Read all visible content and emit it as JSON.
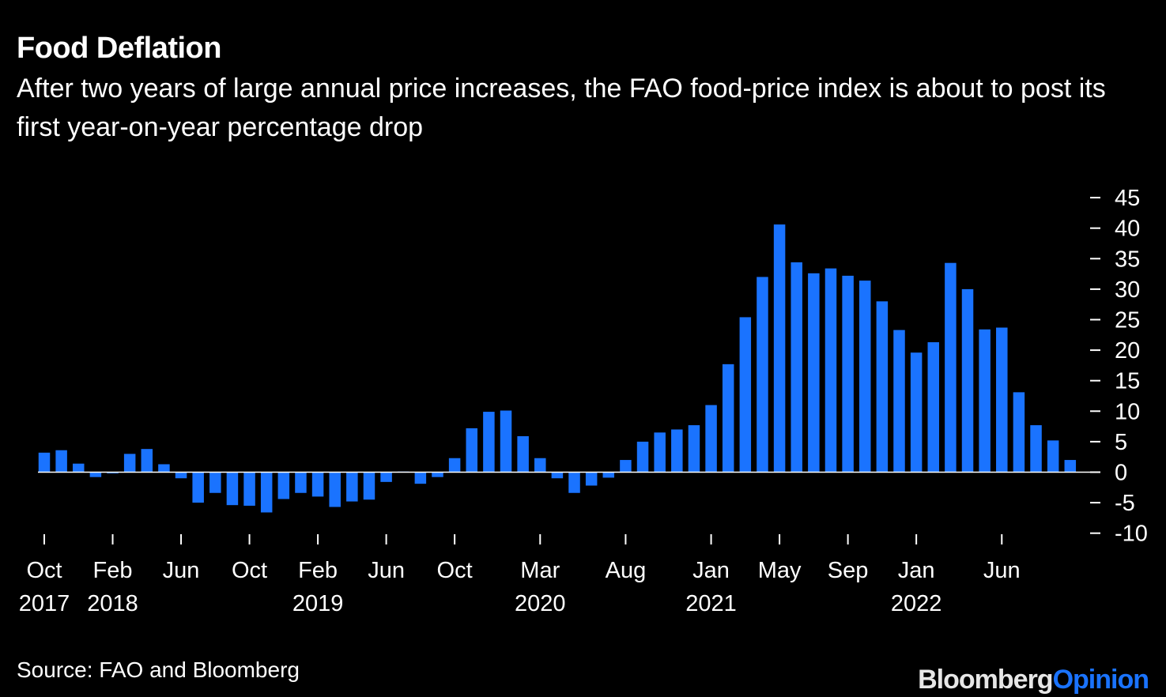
{
  "title": "Food Deflation",
  "subtitle": "After two years of large annual price increases, the FAO food-price index is about to post its first year-on-year percentage drop",
  "source": "Source: FAO and Bloomberg",
  "logo": {
    "part1": "Bloomberg",
    "part2": "Opinion"
  },
  "colors": {
    "background": "#000000",
    "bar": "#1a73ff",
    "text": "#ffffff",
    "zero_line": "#ffffff"
  },
  "chart_data": {
    "type": "bar",
    "series": [
      {
        "values": [
          3.2,
          3.6,
          1.4,
          -0.8,
          -0.2,
          3.0,
          3.8,
          1.3,
          -1.0,
          -5.0,
          -3.4,
          -5.4,
          -5.5,
          -6.6,
          -4.4,
          -3.4,
          -4.0,
          -5.7,
          -4.8,
          -4.5,
          -1.6,
          0.1,
          -1.9,
          -0.8,
          2.3,
          7.2,
          9.9,
          10.1,
          5.9,
          2.3,
          -1.0,
          -3.4,
          -2.2,
          -0.9,
          2.0,
          5.0,
          6.5,
          7.0,
          7.7,
          11.0,
          17.7,
          25.4,
          32.0,
          40.6,
          34.4,
          32.6,
          33.4,
          32.2,
          31.4,
          28.0,
          23.3,
          19.6,
          21.3,
          34.3,
          30.0,
          23.4,
          23.7,
          13.1,
          7.7,
          5.2,
          2.0
        ]
      }
    ],
    "x_ticks": [
      {
        "month": "Oct",
        "year": "2017",
        "index": 0
      },
      {
        "month": "Feb",
        "year": "2018",
        "index": 4
      },
      {
        "month": "Jun",
        "year": "",
        "index": 8
      },
      {
        "month": "Oct",
        "year": "",
        "index": 12
      },
      {
        "month": "Feb",
        "year": "2019",
        "index": 16
      },
      {
        "month": "Jun",
        "year": "",
        "index": 20
      },
      {
        "month": "Oct",
        "year": "",
        "index": 24
      },
      {
        "month": "Mar",
        "year": "2020",
        "index": 29
      },
      {
        "month": "Aug",
        "year": "",
        "index": 34
      },
      {
        "month": "Jan",
        "year": "2021",
        "index": 39
      },
      {
        "month": "May",
        "year": "",
        "index": 43
      },
      {
        "month": "Sep",
        "year": "",
        "index": 47
      },
      {
        "month": "Jan",
        "year": "2022",
        "index": 51
      },
      {
        "month": "Jun",
        "year": "",
        "index": 56
      }
    ],
    "y_ticks": [
      45,
      40,
      35,
      30,
      25,
      20,
      15,
      10,
      5,
      0,
      -5,
      -10
    ],
    "ylim": [
      -10,
      45
    ],
    "y_axis_position": "right",
    "grid": false,
    "legend": "none"
  }
}
